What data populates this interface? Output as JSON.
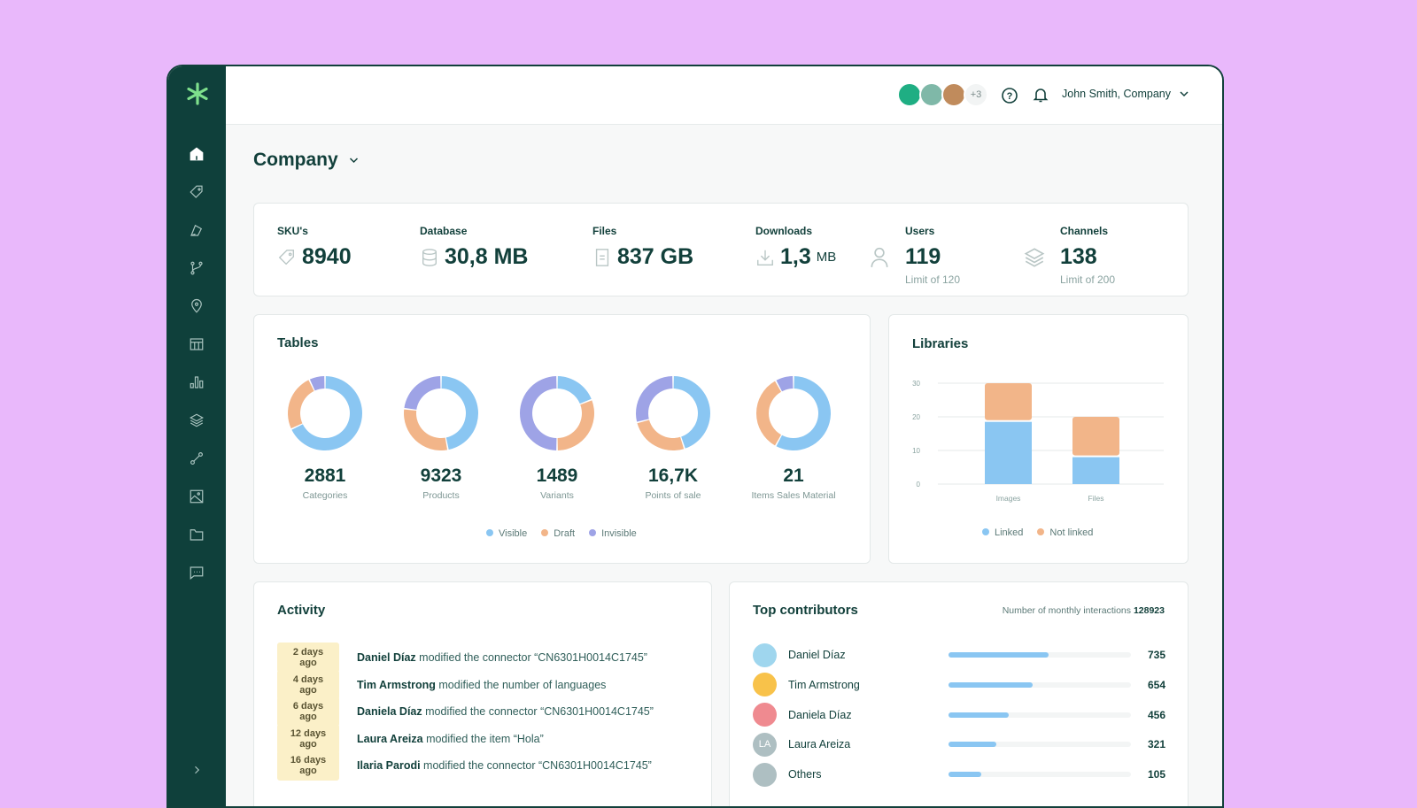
{
  "header": {
    "avatars_more": "+3",
    "user": "John Smith, Company"
  },
  "page": {
    "title": "Company"
  },
  "sidebar": {
    "items": [
      "home-icon",
      "tag-icon",
      "shapes-icon",
      "branch-icon",
      "location-icon",
      "board-icon",
      "chart-icon",
      "layers-icon",
      "route-icon",
      "image-icon",
      "folder-icon",
      "chat-icon"
    ],
    "expand": "chevron-right-icon"
  },
  "stats": [
    {
      "label": "SKU's",
      "value": "8940",
      "icon": "tag-icon"
    },
    {
      "label": "Database",
      "value": "30,8 MB",
      "icon": "database-icon"
    },
    {
      "label": "Files",
      "value": "837 GB",
      "icon": "file-icon"
    },
    {
      "label": "Downloads",
      "value": "1,3",
      "unit": "MB",
      "icon": "download-icon"
    },
    {
      "label": "Users",
      "value": "119",
      "sub": "Limit of 120",
      "icon": "user-icon"
    },
    {
      "label": "Channels",
      "value": "138",
      "sub": "Limit of 200",
      "icon": "layers-icon"
    }
  ],
  "tables": {
    "title": "Tables",
    "items": [
      {
        "value": "2881",
        "label": "Categories"
      },
      {
        "value": "9323",
        "label": "Products"
      },
      {
        "value": "1489",
        "label": "Variants"
      },
      {
        "value": "16,7K",
        "label": "Points of sale"
      },
      {
        "value": "21",
        "label": "Items Sales Material"
      }
    ],
    "legend": [
      "Visible",
      "Draft",
      "Invisible"
    ]
  },
  "libraries": {
    "title": "Libraries"
  },
  "chart_data": [
    {
      "type": "pie",
      "variant": "donut",
      "series_names": [
        "Visible",
        "Draft",
        "Invisible"
      ],
      "colors": [
        "#8ac6f2",
        "#f2b589",
        "#9ea3e6"
      ],
      "charts": [
        {
          "label": "Categories",
          "values": [
            0.68,
            0.25,
            0.07
          ]
        },
        {
          "label": "Products",
          "values": [
            0.47,
            0.3,
            0.23
          ]
        },
        {
          "label": "Variants",
          "values": [
            0.19,
            0.31,
            0.5
          ]
        },
        {
          "label": "Points of sale",
          "values": [
            0.45,
            0.26,
            0.29
          ]
        },
        {
          "label": "Items Sales Material",
          "values": [
            0.58,
            0.34,
            0.08
          ]
        }
      ]
    },
    {
      "type": "bar",
      "stacked": true,
      "categories": [
        "Images",
        "Files"
      ],
      "series": [
        {
          "name": "Linked",
          "values": [
            18.5,
            8
          ],
          "color": "#8ac6f2"
        },
        {
          "name": "Not linked",
          "values": [
            11.5,
            12
          ],
          "color": "#f2b589"
        }
      ],
      "ylim": [
        0,
        30
      ],
      "yticks": [
        "0",
        "10",
        "20",
        "30"
      ],
      "grid": true,
      "legend": "bottom"
    }
  ],
  "activity": {
    "title": "Activity",
    "items": [
      {
        "time": "2 days ago",
        "user": "Daniel Díaz",
        "text": "modified the connector “CN6301H0014C1745”"
      },
      {
        "time": "4 days ago",
        "user": "Tim Armstrong",
        "text": "modified the number of languages"
      },
      {
        "time": "6 days ago",
        "user": "Daniela Díaz",
        "text": "modified the connector “CN6301H0014C1745”"
      },
      {
        "time": "12 days ago",
        "user": "Laura Areiza",
        "text": "modified the item “Hola”"
      },
      {
        "time": "16 days ago",
        "user": "Ilaria Parodi",
        "text": "modified the connector “CN6301H0014C1745”"
      }
    ]
  },
  "contributors": {
    "title": "Top contributors",
    "subtitle": "Number of monthly interactions",
    "total": "128923",
    "items": [
      {
        "name": "Daniel Díaz",
        "value": "735",
        "fill": 0.55,
        "color": "#9fd6ee"
      },
      {
        "name": "Tim Armstrong",
        "value": "654",
        "fill": 0.46,
        "color": "#f8c24a"
      },
      {
        "name": "Daniela Díaz",
        "value": "456",
        "fill": 0.33,
        "color": "#ef8a90"
      },
      {
        "name": "Laura Areiza",
        "value": "321",
        "fill": 0.26,
        "color": "#aebfc2",
        "initials": "LA"
      },
      {
        "name": "Others",
        "value": "105",
        "fill": 0.18,
        "color": "#aebfc2"
      }
    ]
  }
}
